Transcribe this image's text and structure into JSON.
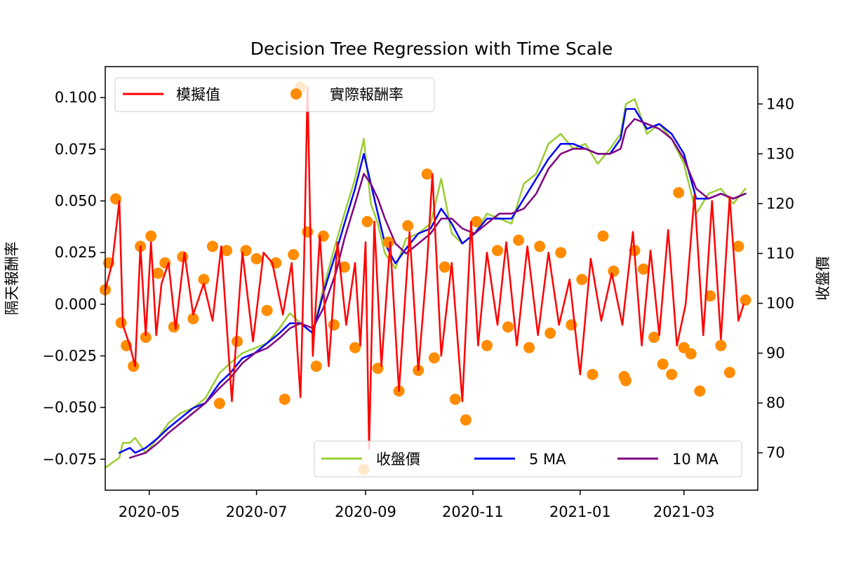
{
  "chart_data": {
    "type": "line",
    "title": "Decision Tree Regression with Time Scale",
    "ylabel_left": "隔天報酬率",
    "ylabel_right": "收盤價",
    "x_ticks": [
      "2020-05",
      "2020-07",
      "2020-09",
      "2020-11",
      "2021-01",
      "2021-03"
    ],
    "y_left_ticks": [
      "−0.075",
      "−0.050",
      "−0.025",
      "0.000",
      "0.025",
      "0.050",
      "0.075",
      "0.100"
    ],
    "y_right_ticks": [
      "70",
      "80",
      "90",
      "100",
      "110",
      "120",
      "130",
      "140"
    ],
    "y_left_lim": [
      -0.09,
      0.115
    ],
    "y_right_lim": [
      62.5,
      147.5
    ],
    "x_range": [
      "2020-04-06",
      "2021-04-12"
    ],
    "grid": false,
    "legend_top_left": [
      "模擬值",
      "實際報酬率"
    ],
    "legend_bottom_right": [
      "收盤價",
      "5 MA",
      "10 MA"
    ],
    "colors": {
      "predicted": "#ff0000",
      "actual": "#ff8c00",
      "close": "#9acd32",
      "ma5": "#0000ff",
      "ma10": "#800080"
    },
    "series_left": [
      {
        "name": "模擬值",
        "x": [
          "2020-04-06",
          "2020-04-10",
          "2020-04-14",
          "2020-04-16",
          "2020-04-18",
          "2020-04-20",
          "2020-04-23",
          "2020-04-26",
          "2020-04-29",
          "2020-05-02",
          "2020-05-05",
          "2020-05-08",
          "2020-05-12",
          "2020-05-16",
          "2020-05-21",
          "2020-05-26",
          "2020-06-01",
          "2020-06-06",
          "2020-06-11",
          "2020-06-17",
          "2020-06-23",
          "2020-06-29",
          "2020-07-05",
          "2020-07-10",
          "2020-07-16",
          "2020-07-21",
          "2020-07-26",
          "2020-07-28",
          "2020-07-30",
          "2020-08-02",
          "2020-08-06",
          "2020-08-11",
          "2020-08-16",
          "2020-08-21",
          "2020-08-26",
          "2020-08-29",
          "2020-09-01",
          "2020-09-03",
          "2020-09-06",
          "2020-09-10",
          "2020-09-15",
          "2020-09-20",
          "2020-09-26",
          "2020-10-01",
          "2020-10-06",
          "2020-10-09",
          "2020-10-14",
          "2020-10-20",
          "2020-10-26",
          "2020-10-31",
          "2020-11-04",
          "2020-11-09",
          "2020-11-15",
          "2020-11-20",
          "2020-11-26",
          "2020-12-02",
          "2020-12-08",
          "2020-12-14",
          "2020-12-20",
          "2020-12-26",
          "2021-01-01",
          "2021-01-07",
          "2021-01-13",
          "2021-01-19",
          "2021-01-25",
          "2021-01-31",
          "2021-02-05",
          "2021-02-10",
          "2021-02-15",
          "2021-02-20",
          "2021-02-25",
          "2021-03-02",
          "2021-03-07",
          "2021-03-12",
          "2021-03-17",
          "2021-03-22",
          "2021-03-27",
          "2021-04-01",
          "2021-04-04"
        ],
        "values": [
          0.007,
          0.02,
          0.05,
          -0.01,
          -0.015,
          -0.02,
          -0.03,
          0.028,
          -0.015,
          0.03,
          -0.015,
          0.01,
          0.02,
          -0.012,
          0.025,
          -0.005,
          0.01,
          -0.008,
          0.028,
          -0.047,
          0.025,
          -0.018,
          0.025,
          0.02,
          -0.005,
          0.02,
          -0.045,
          0.02,
          0.105,
          -0.025,
          0.033,
          -0.03,
          0.03,
          -0.01,
          0.02,
          -0.02,
          0.03,
          -0.07,
          0.04,
          -0.03,
          0.03,
          -0.042,
          0.035,
          -0.032,
          0.02,
          0.063,
          -0.025,
          0.02,
          -0.047,
          0.04,
          -0.02,
          0.025,
          -0.01,
          0.03,
          -0.02,
          0.028,
          -0.015,
          0.025,
          -0.01,
          0.012,
          -0.034,
          0.022,
          -0.008,
          0.015,
          -0.01,
          0.035,
          -0.02,
          0.026,
          -0.015,
          0.036,
          -0.02,
          0.0,
          0.053,
          -0.015,
          0.05,
          -0.017,
          0.052,
          -0.008,
          0.0
        ]
      },
      {
        "name": "實際報酬率",
        "x": [
          "2020-04-06",
          "2020-04-08",
          "2020-04-12",
          "2020-04-15",
          "2020-04-18",
          "2020-04-22",
          "2020-04-26",
          "2020-04-29",
          "2020-05-02",
          "2020-05-06",
          "2020-05-10",
          "2020-05-15",
          "2020-05-20",
          "2020-05-26",
          "2020-06-01",
          "2020-06-06",
          "2020-06-10",
          "2020-06-14",
          "2020-06-20",
          "2020-06-25",
          "2020-07-01",
          "2020-07-07",
          "2020-07-12",
          "2020-07-17",
          "2020-07-22",
          "2020-07-26",
          "2020-07-30",
          "2020-08-04",
          "2020-08-08",
          "2020-08-14",
          "2020-08-20",
          "2020-08-26",
          "2020-08-31",
          "2020-09-02",
          "2020-09-08",
          "2020-09-14",
          "2020-09-20",
          "2020-09-25",
          "2020-10-01",
          "2020-10-06",
          "2020-10-10",
          "2020-10-16",
          "2020-10-22",
          "2020-10-28",
          "2020-11-03",
          "2020-11-09",
          "2020-11-15",
          "2020-11-21",
          "2020-11-27",
          "2020-12-03",
          "2020-12-09",
          "2020-12-15",
          "2020-12-21",
          "2020-12-27",
          "2021-01-02",
          "2021-01-08",
          "2021-01-14",
          "2021-01-20",
          "2021-01-26",
          "2021-01-27",
          "2021-02-01",
          "2021-02-06",
          "2021-02-12",
          "2021-02-17",
          "2021-02-22",
          "2021-02-26",
          "2021-03-01",
          "2021-03-05",
          "2021-03-10",
          "2021-03-16",
          "2021-03-22",
          "2021-03-27",
          "2021-04-01",
          "2021-04-05"
        ],
        "values": [
          0.007,
          0.02,
          0.051,
          -0.009,
          -0.02,
          -0.03,
          0.028,
          -0.016,
          0.033,
          0.015,
          0.02,
          -0.011,
          0.023,
          -0.007,
          0.012,
          0.028,
          -0.048,
          0.026,
          -0.018,
          0.026,
          0.022,
          -0.003,
          0.02,
          -0.046,
          0.024,
          0.105,
          0.035,
          -0.03,
          0.033,
          -0.01,
          0.018,
          -0.021,
          -0.08,
          0.04,
          -0.031,
          0.03,
          -0.042,
          0.038,
          -0.032,
          0.063,
          -0.026,
          0.018,
          -0.046,
          -0.056,
          0.04,
          -0.02,
          0.026,
          -0.011,
          0.031,
          -0.021,
          0.028,
          -0.014,
          0.025,
          -0.01,
          0.012,
          -0.034,
          0.033,
          0.016,
          -0.035,
          -0.037,
          0.026,
          0.017,
          -0.016,
          -0.029,
          -0.034,
          0.054,
          -0.021,
          -0.024,
          -0.042,
          0.004,
          -0.02,
          -0.033,
          0.028,
          0.002
        ]
      }
    ],
    "series_right": [
      {
        "name": "收盤價",
        "x": [
          "2020-04-06",
          "2020-04-14",
          "2020-04-16",
          "2020-04-20",
          "2020-04-23",
          "2020-04-29",
          "2020-05-06",
          "2020-05-12",
          "2020-05-19",
          "2020-05-26",
          "2020-06-02",
          "2020-06-10",
          "2020-06-16",
          "2020-06-23",
          "2020-06-30",
          "2020-07-07",
          "2020-07-14",
          "2020-07-20",
          "2020-07-26",
          "2020-08-02",
          "2020-08-08",
          "2020-08-15",
          "2020-08-20",
          "2020-08-26",
          "2020-08-31",
          "2020-09-04",
          "2020-09-08",
          "2020-09-12",
          "2020-09-18",
          "2020-09-24",
          "2020-10-01",
          "2020-10-08",
          "2020-10-14",
          "2020-10-20",
          "2020-10-26",
          "2020-11-02",
          "2020-11-09",
          "2020-11-16",
          "2020-11-23",
          "2020-11-30",
          "2020-12-07",
          "2020-12-14",
          "2020-12-21",
          "2020-12-28",
          "2021-01-04",
          "2021-01-11",
          "2021-01-18",
          "2021-01-24",
          "2021-01-27",
          "2021-02-01",
          "2021-02-08",
          "2021-02-15",
          "2021-02-22",
          "2021-03-01",
          "2021-03-08",
          "2021-03-15",
          "2021-03-22",
          "2021-03-29",
          "2021-04-05"
        ],
        "values": [
          67,
          69,
          72,
          72,
          73,
          70,
          73,
          76,
          78,
          79,
          81,
          86,
          88,
          90,
          91,
          92,
          95,
          98,
          96,
          94,
          103,
          112,
          118,
          125,
          133,
          120,
          116,
          110,
          107,
          113,
          114,
          116,
          125,
          114,
          112,
          114,
          118,
          117,
          116,
          124,
          126,
          132,
          134,
          131,
          132,
          128,
          131,
          134,
          140,
          141,
          134,
          136,
          133,
          128,
          118,
          122,
          123,
          120,
          123
        ]
      },
      {
        "name": "5 MA",
        "x": [
          "2020-04-14",
          "2020-04-20",
          "2020-04-23",
          "2020-04-29",
          "2020-05-06",
          "2020-05-12",
          "2020-05-19",
          "2020-05-26",
          "2020-06-02",
          "2020-06-10",
          "2020-06-16",
          "2020-06-23",
          "2020-06-30",
          "2020-07-07",
          "2020-07-14",
          "2020-07-20",
          "2020-07-26",
          "2020-08-02",
          "2020-08-08",
          "2020-08-15",
          "2020-08-20",
          "2020-08-26",
          "2020-08-31",
          "2020-09-04",
          "2020-09-08",
          "2020-09-12",
          "2020-09-18",
          "2020-09-24",
          "2020-10-01",
          "2020-10-08",
          "2020-10-14",
          "2020-10-20",
          "2020-10-26",
          "2020-11-02",
          "2020-11-09",
          "2020-11-16",
          "2020-11-23",
          "2020-11-30",
          "2020-12-07",
          "2020-12-14",
          "2020-12-21",
          "2020-12-28",
          "2021-01-04",
          "2021-01-11",
          "2021-01-18",
          "2021-01-24",
          "2021-01-27",
          "2021-02-01",
          "2021-02-08",
          "2021-02-15",
          "2021-02-22",
          "2021-03-01",
          "2021-03-08",
          "2021-03-15",
          "2021-03-22",
          "2021-03-29",
          "2021-04-05"
        ],
        "values": [
          70,
          71,
          70,
          71,
          73,
          75,
          77,
          79,
          80,
          84,
          86,
          89,
          90,
          92,
          94,
          96,
          96,
          94,
          102,
          110,
          116,
          123,
          130,
          124,
          118,
          112,
          108,
          111,
          114,
          115,
          119,
          116,
          112,
          114,
          117,
          117,
          117,
          121,
          125,
          129,
          132,
          132,
          131,
          130,
          130,
          133,
          139,
          139,
          135,
          136,
          134,
          130,
          121,
          121,
          122,
          121,
          122
        ]
      },
      {
        "name": "10 MA",
        "x": [
          "2020-04-20",
          "2020-04-29",
          "2020-05-06",
          "2020-05-12",
          "2020-05-19",
          "2020-05-26",
          "2020-06-02",
          "2020-06-10",
          "2020-06-16",
          "2020-06-23",
          "2020-06-30",
          "2020-07-07",
          "2020-07-14",
          "2020-07-20",
          "2020-07-26",
          "2020-08-02",
          "2020-08-08",
          "2020-08-15",
          "2020-08-20",
          "2020-08-26",
          "2020-08-31",
          "2020-09-04",
          "2020-09-08",
          "2020-09-12",
          "2020-09-18",
          "2020-09-24",
          "2020-10-01",
          "2020-10-08",
          "2020-10-14",
          "2020-10-20",
          "2020-10-26",
          "2020-11-02",
          "2020-11-09",
          "2020-11-16",
          "2020-11-23",
          "2020-11-30",
          "2020-12-07",
          "2020-12-14",
          "2020-12-21",
          "2020-12-28",
          "2021-01-04",
          "2021-01-11",
          "2021-01-18",
          "2021-01-24",
          "2021-01-27",
          "2021-02-01",
          "2021-02-08",
          "2021-02-15",
          "2021-02-22",
          "2021-03-01",
          "2021-03-08",
          "2021-03-15",
          "2021-03-22",
          "2021-03-29",
          "2021-04-05"
        ],
        "values": [
          69,
          70,
          72,
          74,
          76,
          78,
          80,
          83,
          85,
          88,
          90,
          91,
          93,
          95,
          96,
          95,
          99,
          106,
          113,
          120,
          126,
          124,
          121,
          117,
          112,
          110,
          112,
          114,
          117,
          117,
          115,
          114,
          116,
          118,
          118,
          119,
          122,
          127,
          130,
          131,
          131,
          130,
          130,
          131,
          135,
          137,
          136,
          135,
          133,
          129,
          123,
          121,
          122,
          121,
          122
        ]
      }
    ]
  }
}
